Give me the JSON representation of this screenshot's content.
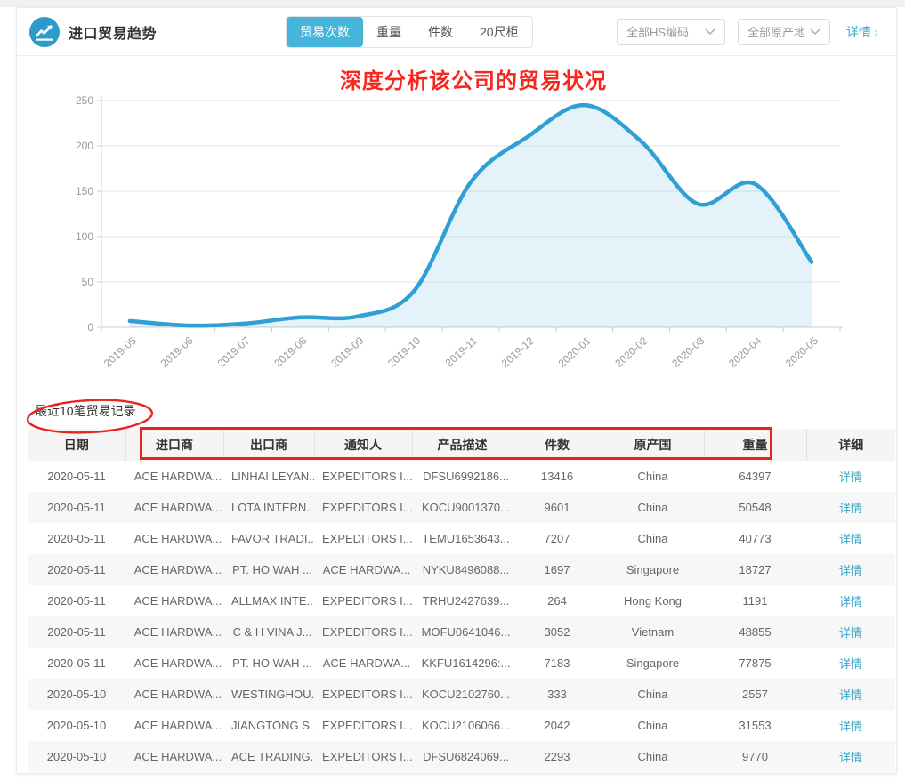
{
  "header": {
    "title": "进口贸易趋势",
    "tabs": [
      {
        "label": "贸易次数",
        "active": true
      },
      {
        "label": "重量",
        "active": false
      },
      {
        "label": "件数",
        "active": false
      },
      {
        "label": "20尺柜",
        "active": false
      }
    ],
    "filters": [
      {
        "label": "全部HS编码"
      },
      {
        "label": "全部原产地"
      }
    ],
    "detail_link": "详情",
    "detail_chevron": "›"
  },
  "annotations": {
    "chart_title": "深度分析该公司的贸易状况",
    "pen_color": "#e8241d"
  },
  "chart_data": {
    "type": "area",
    "title": "",
    "xlabel": "",
    "ylabel": "",
    "x": [
      "2019-05",
      "2019-06",
      "2019-07",
      "2019-08",
      "2019-09",
      "2019-10",
      "2019-11",
      "2019-12",
      "2020-01",
      "2020-02",
      "2020-03",
      "2020-04",
      "2020-05"
    ],
    "series": [
      {
        "name": "贸易次数",
        "values": [
          7,
          2,
          4,
          11,
          12,
          40,
          160,
          210,
          245,
          205,
          136,
          158,
          72
        ]
      }
    ],
    "ylim": [
      0,
      250
    ],
    "yticks": [
      0,
      50,
      100,
      150,
      200,
      250
    ],
    "grid": true,
    "legend_position": "none",
    "line_color": "#2f9fd6",
    "fill_color": "rgba(47,159,214,0.13)"
  },
  "table": {
    "title": "最近10笔贸易记录",
    "columns": [
      "日期",
      "进口商",
      "出口商",
      "通知人",
      "产品描述",
      "件数",
      "原产国",
      "重量",
      "详细"
    ],
    "detail_label": "详情",
    "rows": [
      [
        "2020-05-11",
        "ACE HARDWA...",
        "LINHAI LEYAN...",
        "EXPEDITORS I...",
        "DFSU6992186...",
        "13416",
        "China",
        "64397"
      ],
      [
        "2020-05-11",
        "ACE HARDWA...",
        "LOTA INTERN...",
        "EXPEDITORS I...",
        "KOCU9001370...",
        "9601",
        "China",
        "50548"
      ],
      [
        "2020-05-11",
        "ACE HARDWA...",
        "FAVOR TRADI...",
        "EXPEDITORS I...",
        "TEMU1653643...",
        "7207",
        "China",
        "40773"
      ],
      [
        "2020-05-11",
        "ACE HARDWA...",
        "PT. HO WAH ...",
        "ACE HARDWA...",
        "NYKU8496088...",
        "1697",
        "Singapore",
        "18727"
      ],
      [
        "2020-05-11",
        "ACE HARDWA...",
        "ALLMAX INTE...",
        "EXPEDITORS I...",
        "TRHU2427639...",
        "264",
        "Hong Kong",
        "1191"
      ],
      [
        "2020-05-11",
        "ACE HARDWA...",
        "C & H VINA J...",
        "EXPEDITORS I...",
        "MOFU0641046...",
        "3052",
        "Vietnam",
        "48855"
      ],
      [
        "2020-05-11",
        "ACE HARDWA...",
        "PT. HO WAH ...",
        "ACE HARDWA...",
        "KKFU1614296:...",
        "7183",
        "Singapore",
        "77875"
      ],
      [
        "2020-05-10",
        "ACE HARDWA...",
        "WESTINGHOU...",
        "EXPEDITORS I...",
        "KOCU2102760...",
        "333",
        "China",
        "2557"
      ],
      [
        "2020-05-10",
        "ACE HARDWA...",
        "JIANGTONG S...",
        "EXPEDITORS I...",
        "KOCU2106066...",
        "2042",
        "China",
        "31553"
      ],
      [
        "2020-05-10",
        "ACE HARDWA...",
        "ACE TRADING...",
        "EXPEDITORS I...",
        "DFSU6824069...",
        "2293",
        "China",
        "9770"
      ]
    ]
  }
}
